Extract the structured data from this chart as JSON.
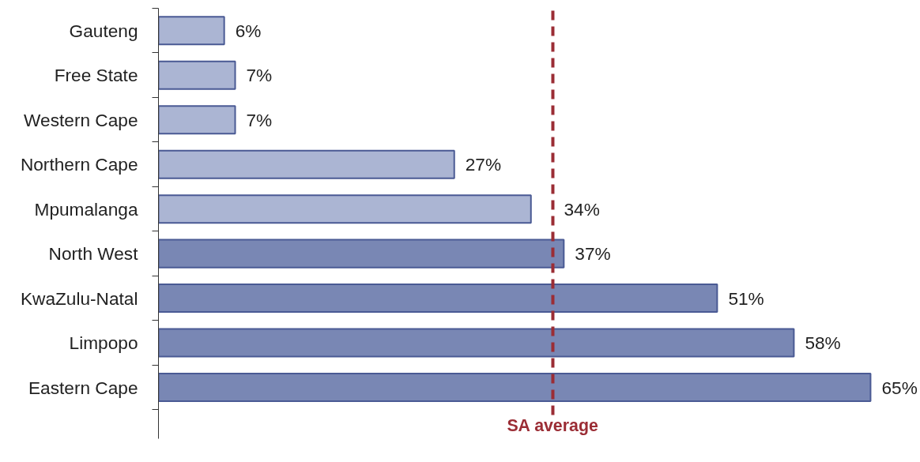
{
  "chart_data": {
    "type": "bar",
    "orientation": "horizontal",
    "categories": [
      "Gauteng",
      "Free State",
      "Western Cape",
      "Northern Cape",
      "Mpumalanga",
      "North West",
      "KwaZulu-Natal",
      "Limpopo",
      "Eastern Cape"
    ],
    "values": [
      6,
      7,
      7,
      27,
      34,
      37,
      51,
      58,
      65
    ],
    "colors": [
      "#abb5d3",
      "#abb5d3",
      "#abb5d3",
      "#abb5d3",
      "#abb5d3",
      "#7987b4",
      "#7987b4",
      "#7987b4",
      "#7987b4"
    ],
    "value_labels": [
      "6%",
      "7%",
      "7%",
      "27%",
      "34%",
      "37%",
      "51%",
      "58%",
      "65%"
    ],
    "ref_lines": [
      {
        "axis": "x",
        "value": 36,
        "label": "SA average",
        "color": "#9b2d35",
        "line_style": "dashed"
      }
    ],
    "legend": false,
    "grid": false
  }
}
